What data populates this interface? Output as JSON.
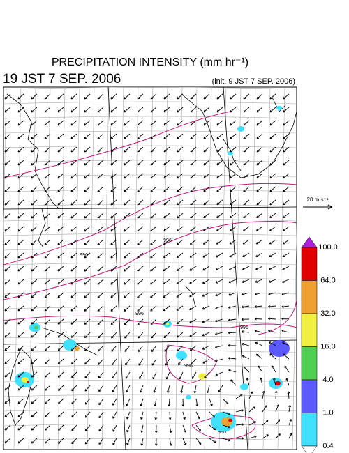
{
  "header": {
    "title": "PRECIPITATION INTENSITY (mm hr⁻¹)",
    "valid_time": "19 JST 7 SEP. 2006",
    "init_time": "(init. 9 JST 7 SEP. 2006)"
  },
  "vector_scale": {
    "label": "20 m s⁻¹"
  },
  "contour_labels": [
    "996",
    "996",
    "996",
    "996",
    "996",
    "996"
  ],
  "colorbar": {
    "labels": [
      "100.0",
      "64.0",
      "32.0",
      "16.0",
      "4.0",
      "1.0",
      "0.4"
    ]
  }
}
